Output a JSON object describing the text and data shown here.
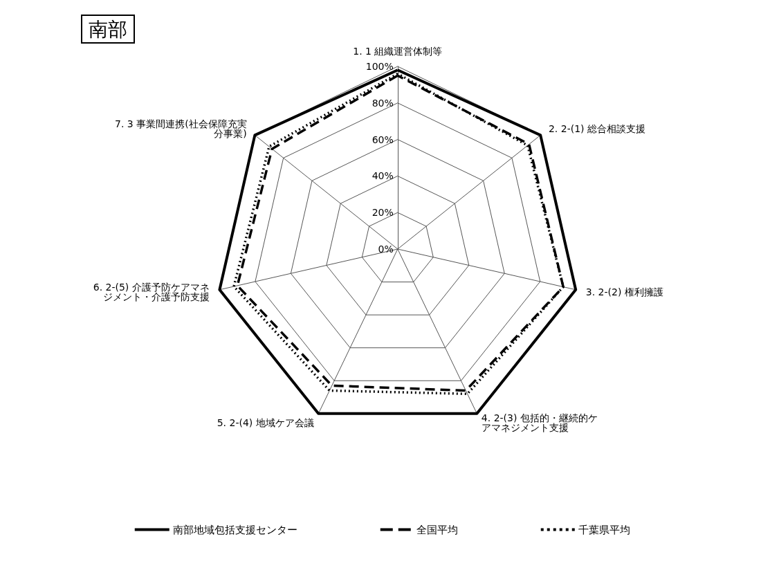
{
  "chart_data": {
    "type": "radar",
    "title": "南部",
    "categories": [
      "1. 1 組織運営体制等",
      "2. 2-(1) 総合相談支援",
      "3. 2-(2) 権利擁護",
      "4. 2-(3) 包括的・継続的ケアマネジメント支援",
      "5. 2-(4) 地域ケア会議",
      "6. 2-(5) 介護予防ケアマネジメント・介護予防支援",
      "7. 3 事業間連携(社会保障充実分事業)"
    ],
    "series": [
      {
        "name": "南部地域包括支援センター",
        "color": "#000000",
        "line_style": "solid",
        "values": [
          98,
          100,
          100,
          100,
          100,
          100,
          100
        ]
      },
      {
        "name": "全国平均",
        "color": "#000000",
        "line_style": "dashed",
        "values": [
          95,
          92,
          93,
          86,
          83,
          90,
          88
        ]
      },
      {
        "name": "千葉県平均",
        "color": "#000000",
        "line_style": "dotted",
        "values": [
          96,
          91,
          93,
          88,
          86,
          92,
          90
        ]
      }
    ],
    "ylim": [
      0,
      100
    ],
    "yticks": [
      {
        "value": 0,
        "label": "0%"
      },
      {
        "value": 20,
        "label": "20%"
      },
      {
        "value": 40,
        "label": "40%"
      },
      {
        "value": 60,
        "label": "60%"
      },
      {
        "value": 80,
        "label": "80%"
      },
      {
        "value": 100,
        "label": "100%"
      }
    ],
    "legend": "bottom",
    "grid": true
  }
}
